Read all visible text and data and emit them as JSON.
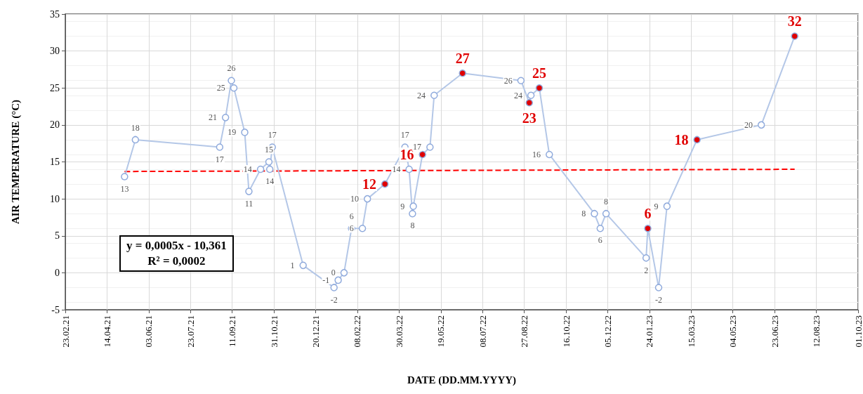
{
  "chart_data": {
    "type": "line",
    "xlabel": "DATE (DD.MM.YYYY)",
    "ylabel": "AIR TEMPERATURE (°C)",
    "x": [
      "2021-05-05",
      "2021-05-18",
      "2021-08-27",
      "2021-09-03",
      "2021-09-10",
      "2021-09-13",
      "2021-09-26",
      "2021-10-01",
      "2021-10-15",
      "2021-10-25",
      "2021-10-26",
      "2021-10-29",
      "2021-12-05",
      "2022-01-11",
      "2022-01-16",
      "2022-01-23",
      "2022-02-01",
      "2022-02-14",
      "2022-02-20",
      "2022-03-13",
      "2022-04-06",
      "2022-04-11",
      "2022-04-15",
      "2022-04-16",
      "2022-04-27",
      "2022-05-06",
      "2022-05-11",
      "2022-06-14",
      "2022-08-23",
      "2022-09-02",
      "2022-09-04",
      "2022-09-14",
      "2022-09-26",
      "2022-11-19",
      "2022-11-26",
      "2022-12-03",
      "2023-01-20",
      "2023-01-22",
      "2023-02-04",
      "2023-02-14",
      "2023-03-22",
      "2023-06-07",
      "2023-07-17"
    ],
    "series": [
      {
        "color": "#b4c7e7",
        "marker": "circle",
        "data_labels": true,
        "values": [
          13,
          18,
          17,
          21,
          26,
          25,
          19,
          11,
          14,
          15,
          14,
          17,
          1,
          -2,
          -1,
          0,
          6,
          6,
          10,
          12,
          17,
          14,
          8,
          9,
          16,
          17,
          24,
          27,
          26,
          23,
          24,
          25,
          16,
          8,
          6,
          8,
          2,
          6,
          -2,
          9,
          18,
          20,
          32
        ],
        "colors": [
          "#8faadc",
          "#8faadc",
          "#8faadc",
          "#8faadc",
          "#8faadc",
          "#8faadc",
          "#8faadc",
          "#8faadc",
          "#8faadc",
          "#8faadc",
          "#8faadc",
          "#8faadc",
          "#8faadc",
          "#8faadc",
          "#8faadc",
          "#8faadc",
          "#8faadc",
          "#8faadc",
          "#8faadc",
          "#e00000",
          "#8faadc",
          "#8faadc",
          "#8faadc",
          "#8faadc",
          "#e00000",
          "#8faadc",
          "#8faadc",
          "#e00000",
          "#8faadc",
          "#e00000",
          "#8faadc",
          "#e00000",
          "#8faadc",
          "#8faadc",
          "#8faadc",
          "#8faadc",
          "#8faadc",
          "#e00000",
          "#8faadc",
          "#8faadc",
          "#e00000",
          "#8faadc",
          "#e00000"
        ]
      },
      {
        "type": "line",
        "color": "#ff0000",
        "line_style": "dashed",
        "marker": "none",
        "x": [
          "2021-05-05",
          "2023-07-17"
        ],
        "values": [
          13.7,
          14.0
        ]
      }
    ],
    "annotations": [
      "y = 0,0005x - 10,361",
      "R² = 0,0002"
    ],
    "xlim": [
      "2021-02-23",
      "2023-10-01"
    ],
    "xticks": [
      {
        "value": "2021-02-23",
        "label": "23.02.21"
      },
      {
        "value": "2021-04-14",
        "label": "14.04.21"
      },
      {
        "value": "2021-06-03",
        "label": "03.06.21"
      },
      {
        "value": "2021-07-23",
        "label": "23.07.21"
      },
      {
        "value": "2021-09-11",
        "label": "11.09.21"
      },
      {
        "value": "2021-10-31",
        "label": "31.10.21"
      },
      {
        "value": "2021-12-20",
        "label": "20.12.21"
      },
      {
        "value": "2022-02-08",
        "label": "08.02.22"
      },
      {
        "value": "2022-03-30",
        "label": "30.03.22"
      },
      {
        "value": "2022-05-19",
        "label": "19.05.22"
      },
      {
        "value": "2022-07-08",
        "label": "08.07.22"
      },
      {
        "value": "2022-08-27",
        "label": "27.08.22"
      },
      {
        "value": "2022-10-16",
        "label": "16.10.22"
      },
      {
        "value": "2022-12-05",
        "label": "05.12.22"
      },
      {
        "value": "2023-01-24",
        "label": "24.01.23"
      },
      {
        "value": "2023-03-15",
        "label": "15.03.23"
      },
      {
        "value": "2023-05-04",
        "label": "04.05.23"
      },
      {
        "value": "2023-06-23",
        "label": "23.06.23"
      },
      {
        "value": "2023-08-12",
        "label": "12.08.23"
      },
      {
        "value": "2023-10-01",
        "label": "01.10.23"
      }
    ],
    "ylim": [
      -5,
      35
    ],
    "yticks": [
      -5,
      0,
      5,
      10,
      15,
      20,
      25,
      30,
      35
    ],
    "grid": true
  }
}
